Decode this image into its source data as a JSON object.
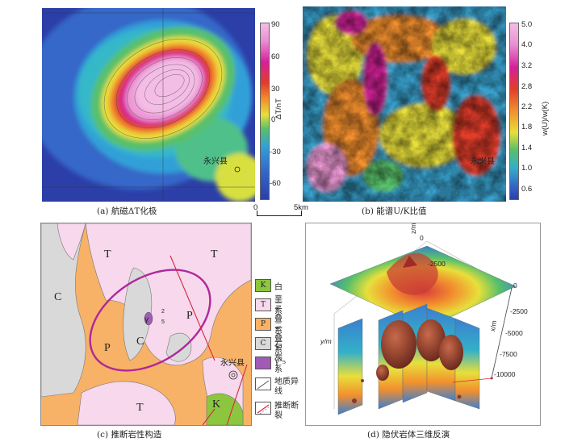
{
  "panels": {
    "a": {
      "caption": "(a) 航磁ΔT化极",
      "colorbar_unit": "ΔT/nT",
      "colorbar_ticks": [
        "90",
        "60",
        "30",
        "0",
        "-30",
        "-60"
      ],
      "place": "永兴县"
    },
    "b": {
      "caption": "(b) 能谱U/K比值",
      "colorbar_unit": "w(U)/w(K)",
      "colorbar_ticks": [
        "5.0",
        "4.0",
        "3.2",
        "2.8",
        "2.2",
        "1.8",
        "1.4",
        "1.0",
        "0.6"
      ],
      "place": "永兴县"
    },
    "c": {
      "caption": "(c) 推断岩性构造",
      "labels": {
        "T": "T",
        "C": "C",
        "P": "P",
        "K": "K",
        "gamma": "γ",
        "gamma_sup": "2",
        "gamma_sub": "5"
      },
      "place": "永兴县",
      "legend": [
        {
          "symbol": "K",
          "label": "白垩系",
          "color": "#8cc63f"
        },
        {
          "symbol": "T",
          "label": "三叠系",
          "color": "#f7d8ec"
        },
        {
          "symbol": "P",
          "label": "二叠系",
          "color": "#f7b267"
        },
        {
          "symbol": "C",
          "label": "石炭系",
          "color": "#d9d9d9"
        },
        {
          "symbol": "γ",
          "label": "γ²₅",
          "color": "#a05bb5"
        },
        {
          "symbol": "line",
          "label": "地质异线",
          "color": "#555555"
        },
        {
          "symbol": "fault",
          "label": "推断断裂",
          "color": "#d7263d"
        }
      ]
    },
    "d": {
      "caption": "(d) 隐伏岩体三维反演",
      "z_label": "z/m",
      "z_ticks": [
        "0",
        "-2500"
      ],
      "x_label": "x/m",
      "x_ticks": [
        "0",
        "-2500",
        "-5000",
        "-7500",
        "-10000"
      ],
      "y_label": "y/m"
    }
  },
  "scalebar": {
    "start": "0",
    "end": "5km"
  }
}
